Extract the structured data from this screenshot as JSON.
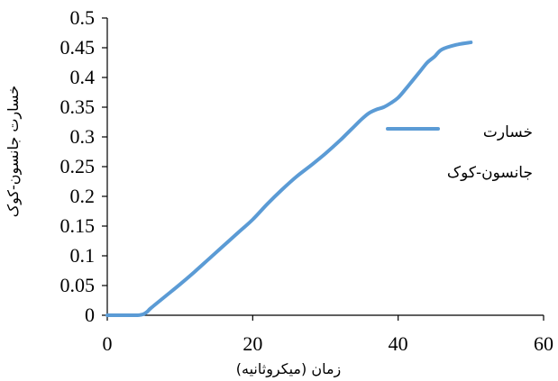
{
  "chart_data": {
    "type": "line",
    "title": "",
    "xlabel": "زمان (میکروثانیه)",
    "ylabel": "خسارت جانسون-کوک",
    "xlim": [
      0,
      60
    ],
    "ylim": [
      0,
      0.5
    ],
    "x_ticks": [
      "0",
      "20",
      "40",
      "60"
    ],
    "y_ticks": [
      "0",
      "0.05",
      "0.1",
      "0.15",
      "0.2",
      "0.25",
      "0.3",
      "0.35",
      "0.4",
      "0.45",
      "0.5"
    ],
    "grid": false,
    "legend_position": "right",
    "legend_lines": [
      "خسارت",
      "جانسون-کوک"
    ],
    "series": [
      {
        "color": "#5B9BD5",
        "x": [
          0,
          2,
          4,
          4.5,
          5,
          5.5,
          6,
          8,
          10,
          12,
          14,
          16,
          18,
          20,
          22,
          24,
          26,
          28,
          30,
          32,
          33,
          34,
          35,
          36,
          37,
          38,
          39,
          40,
          41,
          42,
          43,
          44,
          45,
          46,
          48,
          50
        ],
        "values": [
          0,
          0,
          0,
          0.0005,
          0.002,
          0.006,
          0.012,
          0.032,
          0.052,
          0.073,
          0.095,
          0.117,
          0.139,
          0.161,
          0.187,
          0.211,
          0.233,
          0.252,
          0.272,
          0.294,
          0.306,
          0.318,
          0.33,
          0.34,
          0.346,
          0.35,
          0.357,
          0.366,
          0.38,
          0.395,
          0.41,
          0.425,
          0.435,
          0.447,
          0.455,
          0.459
        ]
      }
    ]
  }
}
